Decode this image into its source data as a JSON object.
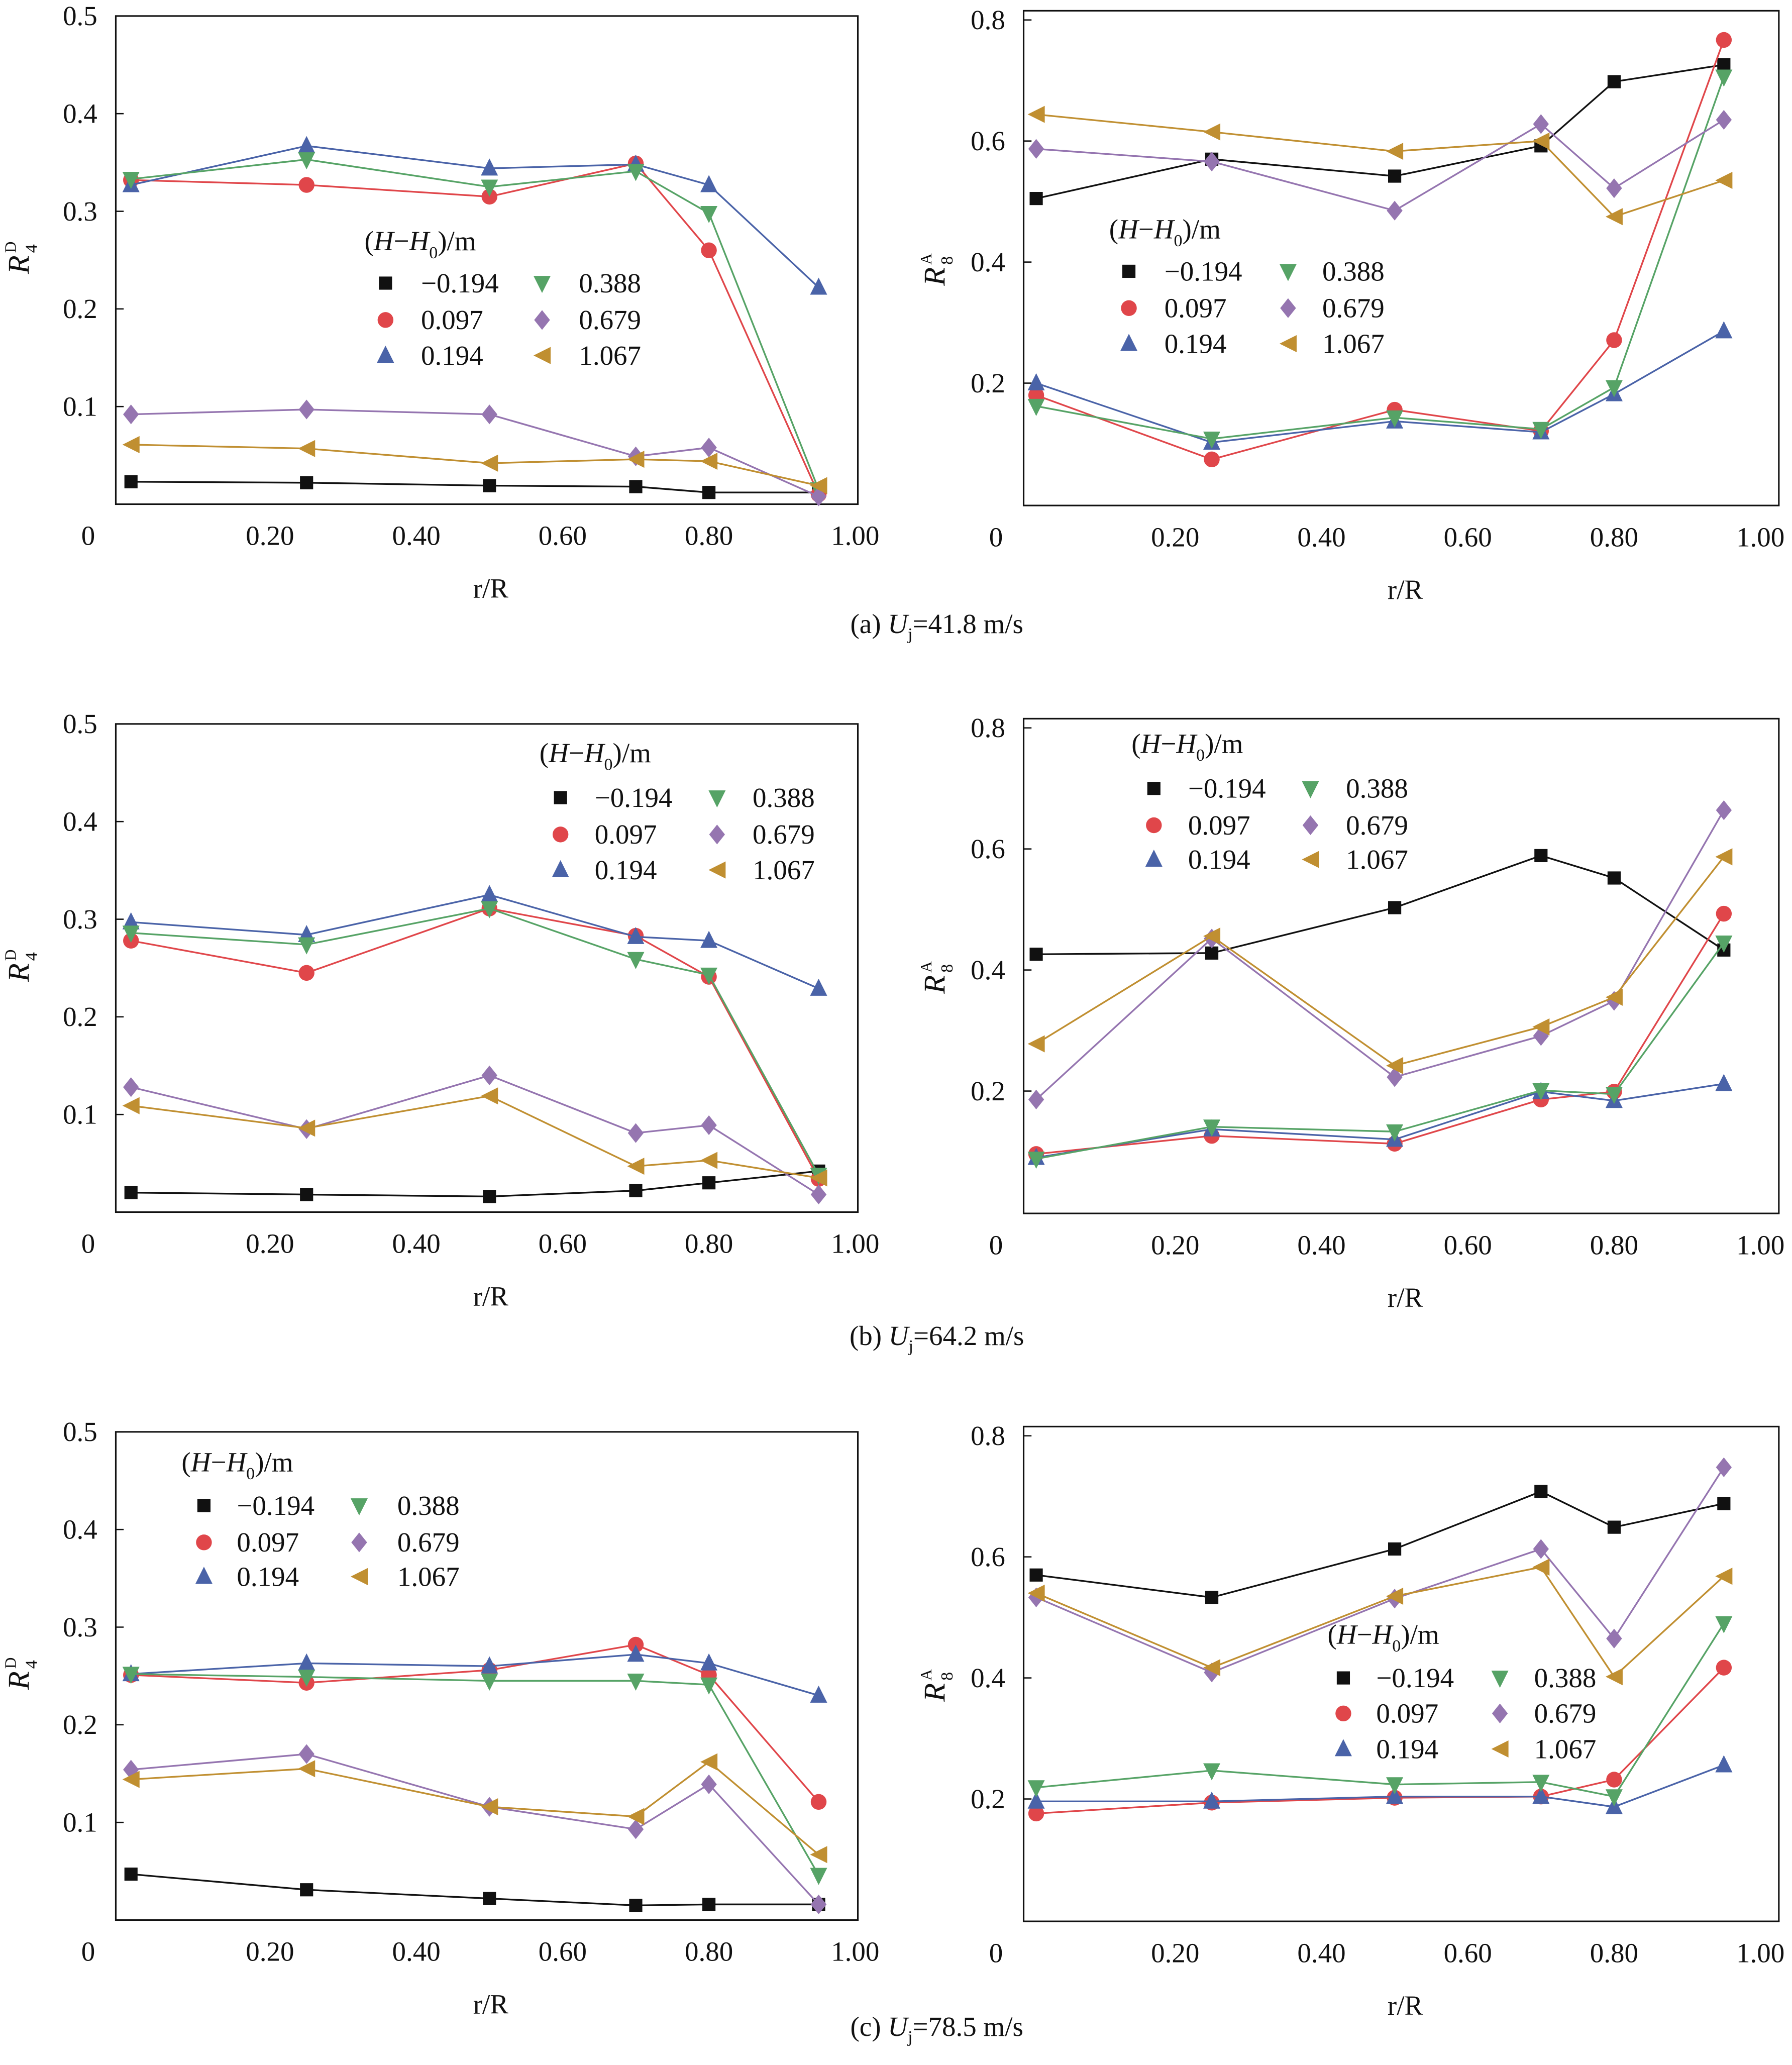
{
  "legend_title": "(H−H0)/m",
  "colors": {
    "-0.194": "#111111",
    "0.097": "#e0464a",
    "0.194": "#4a63a8",
    "0.388": "#56a366",
    "0.679": "#9575b0",
    "1.067": "#c08f31"
  },
  "chart_data": [
    {
      "panel": "a",
      "type": "line",
      "caption": "(a) Uj=41.8 m/s",
      "caption_prefix": "(a) ",
      "caption_var": "U",
      "caption_sub": "j",
      "caption_rest": "=41.8 m/s",
      "ylabel": "R",
      "ylabel_sub": "4",
      "ylabel_sup": "D",
      "xlabel": "r/R",
      "ylim": [
        0,
        0.5
      ],
      "yticks": [
        "0.1",
        "0.2",
        "0.3",
        "0.4",
        "0.5"
      ],
      "xticks": [
        "0",
        "0.20",
        "0.40",
        "0.60",
        "0.80",
        "1.00"
      ],
      "x": [
        0.01,
        0.25,
        0.5,
        0.7,
        0.8,
        0.95
      ],
      "series": [
        {
          "name": "−0.194",
          "marker": "square",
          "values": [
            0.023,
            0.022,
            0.019,
            0.018,
            0.012,
            0.012
          ]
        },
        {
          "name": "0.097",
          "marker": "circle",
          "values": [
            0.332,
            0.327,
            0.315,
            0.349,
            0.26,
            0.01
          ]
        },
        {
          "name": "0.194",
          "marker": "triangle-up",
          "values": [
            0.327,
            0.367,
            0.344,
            0.348,
            0.327,
            0.222
          ]
        },
        {
          "name": "0.388",
          "marker": "triangle-down",
          "values": [
            0.333,
            0.353,
            0.325,
            0.341,
            0.298,
            0.015
          ]
        },
        {
          "name": "0.679",
          "marker": "diamond",
          "values": [
            0.092,
            0.097,
            0.092,
            0.049,
            0.058,
            0.008
          ]
        },
        {
          "name": "1.067",
          "marker": "triangle-left",
          "values": [
            0.061,
            0.057,
            0.042,
            0.046,
            0.044,
            0.019
          ]
        }
      ]
    },
    {
      "panel": "a",
      "type": "line",
      "ylabel": "R",
      "ylabel_sub": "8",
      "ylabel_sup": "A",
      "xlabel": "r/R",
      "ylim": [
        0,
        0.8
      ],
      "yticks": [
        "0.2",
        "0.4",
        "0.6",
        "0.8"
      ],
      "xticks": [
        "0",
        "0.20",
        "0.40",
        "0.60",
        "0.80",
        "1.00"
      ],
      "x": [
        0.01,
        0.25,
        0.5,
        0.7,
        0.8,
        0.95
      ],
      "series": [
        {
          "name": "−0.194",
          "marker": "square",
          "values": [
            0.505,
            0.57,
            0.542,
            0.592,
            0.698,
            0.726
          ]
        },
        {
          "name": "0.097",
          "marker": "circle",
          "values": [
            0.18,
            0.074,
            0.156,
            0.121,
            0.271,
            0.767
          ]
        },
        {
          "name": "0.194",
          "marker": "triangle-up",
          "values": [
            0.2,
            0.102,
            0.137,
            0.119,
            0.182,
            0.286
          ]
        },
        {
          "name": "0.388",
          "marker": "triangle-down",
          "values": [
            0.162,
            0.108,
            0.143,
            0.124,
            0.193,
            0.706
          ]
        },
        {
          "name": "0.679",
          "marker": "diamond",
          "values": [
            0.587,
            0.566,
            0.485,
            0.628,
            0.522,
            0.635
          ]
        },
        {
          "name": "1.067",
          "marker": "triangle-left",
          "values": [
            0.644,
            0.615,
            0.583,
            0.6,
            0.475,
            0.535
          ]
        }
      ]
    },
    {
      "panel": "b",
      "type": "line",
      "caption": "(b) Uj=64.2 m/s",
      "caption_prefix": "(b) ",
      "caption_var": "U",
      "caption_sub": "j",
      "caption_rest": "=64.2 m/s",
      "ylabel": "R",
      "ylabel_sub": "4",
      "ylabel_sup": "D",
      "xlabel": "r/R",
      "ylim": [
        0,
        0.5
      ],
      "yticks": [
        "0.1",
        "0.2",
        "0.3",
        "0.4",
        "0.5"
      ],
      "xticks": [
        "0",
        "0.20",
        "0.40",
        "0.60",
        "0.80",
        "1.00"
      ],
      "x": [
        0.01,
        0.25,
        0.5,
        0.7,
        0.8,
        0.95
      ],
      "series": [
        {
          "name": "−0.194",
          "marker": "square",
          "values": [
            0.02,
            0.018,
            0.016,
            0.022,
            0.03,
            0.042
          ]
        },
        {
          "name": "0.097",
          "marker": "circle",
          "values": [
            0.278,
            0.245,
            0.311,
            0.283,
            0.241,
            0.034
          ]
        },
        {
          "name": "0.194",
          "marker": "triangle-up",
          "values": [
            0.297,
            0.284,
            0.325,
            0.282,
            0.278,
            0.229
          ]
        },
        {
          "name": "0.388",
          "marker": "triangle-down",
          "values": [
            0.286,
            0.274,
            0.311,
            0.259,
            0.243,
            0.038
          ]
        },
        {
          "name": "0.679",
          "marker": "diamond",
          "values": [
            0.128,
            0.085,
            0.14,
            0.081,
            0.089,
            0.018
          ]
        },
        {
          "name": "1.067",
          "marker": "triangle-left",
          "values": [
            0.109,
            0.086,
            0.119,
            0.047,
            0.053,
            0.035
          ]
        }
      ]
    },
    {
      "panel": "b",
      "type": "line",
      "ylabel": "R",
      "ylabel_sub": "8",
      "ylabel_sup": "A",
      "xlabel": "r/R",
      "ylim": [
        0,
        0.8
      ],
      "yticks": [
        "0.2",
        "0.4",
        "0.6",
        "0.8"
      ],
      "xticks": [
        "0",
        "0.20",
        "0.40",
        "0.60",
        "0.80",
        "1.00"
      ],
      "x": [
        0.01,
        0.25,
        0.5,
        0.7,
        0.8,
        0.95
      ],
      "series": [
        {
          "name": "−0.194",
          "marker": "square",
          "values": [
            0.426,
            0.428,
            0.503,
            0.589,
            0.552,
            0.433
          ]
        },
        {
          "name": "0.097",
          "marker": "circle",
          "values": [
            0.096,
            0.126,
            0.113,
            0.186,
            0.199,
            0.493
          ]
        },
        {
          "name": "0.194",
          "marker": "triangle-up",
          "values": [
            0.09,
            0.137,
            0.12,
            0.199,
            0.184,
            0.212
          ]
        },
        {
          "name": "0.388",
          "marker": "triangle-down",
          "values": [
            0.088,
            0.141,
            0.133,
            0.201,
            0.195,
            0.445
          ]
        },
        {
          "name": "0.679",
          "marker": "diamond",
          "values": [
            0.186,
            0.452,
            0.223,
            0.291,
            0.349,
            0.664
          ]
        },
        {
          "name": "1.067",
          "marker": "triangle-left",
          "values": [
            0.278,
            0.456,
            0.242,
            0.306,
            0.355,
            0.587
          ]
        }
      ]
    },
    {
      "panel": "c",
      "type": "line",
      "caption": "(c) Uj=78.5 m/s",
      "caption_prefix": "(c) ",
      "caption_var": "U",
      "caption_sub": "j",
      "caption_rest": "=78.5 m/s",
      "ylabel": "R",
      "ylabel_sub": "4",
      "ylabel_sup": "D",
      "xlabel": "r/R",
      "ylim": [
        0,
        0.5
      ],
      "yticks": [
        "0.1",
        "0.2",
        "0.3",
        "0.4",
        "0.5"
      ],
      "xticks": [
        "0",
        "0.20",
        "0.40",
        "0.60",
        "0.80",
        "1.00"
      ],
      "x": [
        0.01,
        0.25,
        0.5,
        0.7,
        0.8,
        0.95
      ],
      "series": [
        {
          "name": "−0.194",
          "marker": "square",
          "values": [
            0.047,
            0.031,
            0.022,
            0.015,
            0.016,
            0.016
          ]
        },
        {
          "name": "0.097",
          "marker": "circle",
          "values": [
            0.251,
            0.243,
            0.256,
            0.282,
            0.251,
            0.121
          ]
        },
        {
          "name": "0.194",
          "marker": "triangle-up",
          "values": [
            0.252,
            0.263,
            0.26,
            0.272,
            0.263,
            0.23
          ]
        },
        {
          "name": "0.388",
          "marker": "triangle-down",
          "values": [
            0.252,
            0.249,
            0.245,
            0.245,
            0.241,
            0.046
          ]
        },
        {
          "name": "0.679",
          "marker": "diamond",
          "values": [
            0.154,
            0.17,
            0.116,
            0.093,
            0.139,
            0.016
          ]
        },
        {
          "name": "1.067",
          "marker": "triangle-left",
          "values": [
            0.144,
            0.155,
            0.116,
            0.106,
            0.162,
            0.067
          ]
        }
      ]
    },
    {
      "panel": "c",
      "type": "line",
      "ylabel": "R",
      "ylabel_sub": "8",
      "ylabel_sup": "A",
      "xlabel": "r/R",
      "ylim": [
        0,
        0.8
      ],
      "yticks": [
        "0.2",
        "0.4",
        "0.6",
        "0.8"
      ],
      "xticks": [
        "0",
        "0.20",
        "0.40",
        "0.60",
        "0.80",
        "1.00"
      ],
      "x": [
        0.01,
        0.25,
        0.5,
        0.7,
        0.8,
        0.95
      ],
      "series": [
        {
          "name": "−0.194",
          "marker": "square",
          "values": [
            0.57,
            0.533,
            0.613,
            0.708,
            0.649,
            0.688
          ]
        },
        {
          "name": "0.097",
          "marker": "circle",
          "values": [
            0.176,
            0.194,
            0.202,
            0.204,
            0.232,
            0.417
          ]
        },
        {
          "name": "0.194",
          "marker": "triangle-up",
          "values": [
            0.196,
            0.196,
            0.204,
            0.204,
            0.187,
            0.256
          ]
        },
        {
          "name": "0.388",
          "marker": "triangle-down",
          "values": [
            0.219,
            0.247,
            0.224,
            0.228,
            0.204,
            0.49
          ]
        },
        {
          "name": "0.679",
          "marker": "diamond",
          "values": [
            0.533,
            0.409,
            0.531,
            0.613,
            0.465,
            0.748
          ]
        },
        {
          "name": "1.067",
          "marker": "triangle-left",
          "values": [
            0.54,
            0.417,
            0.535,
            0.583,
            0.402,
            0.568
          ]
        }
      ]
    }
  ]
}
